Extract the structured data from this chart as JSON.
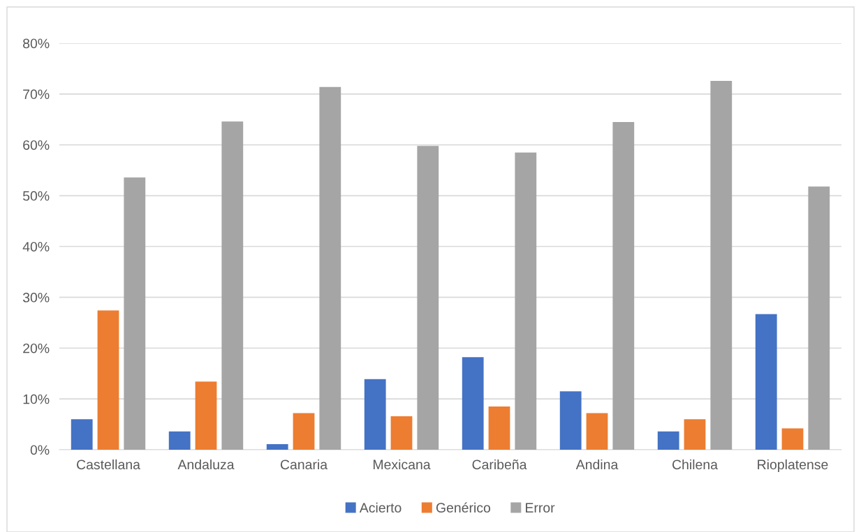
{
  "chart_data": {
    "type": "bar",
    "categories": [
      "Castellana",
      "Andaluza",
      "Canaria",
      "Mexicana",
      "Caribeña",
      "Andina",
      "Chilena",
      "Rioplatense"
    ],
    "series": [
      {
        "name": "Acierto",
        "color": "#4472c4",
        "values": [
          6.0,
          3.6,
          1.1,
          13.9,
          18.2,
          11.5,
          3.6,
          26.7
        ]
      },
      {
        "name": "Genérico",
        "color": "#ed7d31",
        "values": [
          27.4,
          13.4,
          7.2,
          6.6,
          8.5,
          7.2,
          6.0,
          4.2
        ]
      },
      {
        "name": "Error",
        "color": "#a5a5a5",
        "values": [
          53.6,
          64.6,
          71.4,
          59.8,
          58.5,
          64.5,
          72.6,
          51.8
        ]
      }
    ],
    "ylim": [
      0,
      80
    ],
    "yticks": [
      {
        "value": 0,
        "label": "0%"
      },
      {
        "value": 10,
        "label": "10%"
      },
      {
        "value": 20,
        "label": "20%"
      },
      {
        "value": 30,
        "label": "30%"
      },
      {
        "value": 40,
        "label": "40%"
      },
      {
        "value": 50,
        "label": "50%"
      },
      {
        "value": 60,
        "label": "60%"
      },
      {
        "value": 70,
        "label": "70%"
      },
      {
        "value": 80,
        "label": "80%"
      }
    ],
    "grid": "y",
    "legend": "bottom"
  }
}
